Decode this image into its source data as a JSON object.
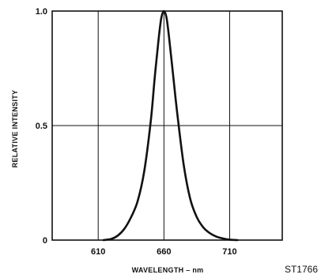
{
  "chart_data": {
    "type": "line",
    "title": "",
    "xlabel": "WAVELENGTH – nm",
    "ylabel": "RELATIVE INTENSITY",
    "xlim": [
      575,
      750
    ],
    "ylim": [
      0,
      1.0
    ],
    "x_ticks": [
      610,
      660,
      710
    ],
    "x_tick_labels": [
      "610",
      "660",
      "710"
    ],
    "y_ticks": [
      0,
      0.5,
      1.0
    ],
    "y_tick_labels": [
      "0",
      "0.5",
      "1.0"
    ],
    "grid": true,
    "legend": "none",
    "figure_id": "ST1766",
    "colors": {
      "line": "#111111",
      "grid": "#111111",
      "frame": "#111111"
    },
    "series": [
      {
        "x": [
          614,
          620,
          625,
          630,
          635,
          640,
          645,
          650,
          653,
          656,
          658,
          660,
          662,
          664,
          667,
          670,
          675,
          680,
          685,
          690,
          695,
          700,
          705,
          710,
          716
        ],
        "y": [
          0.0,
          0.005,
          0.02,
          0.05,
          0.1,
          0.17,
          0.3,
          0.52,
          0.71,
          0.88,
          0.97,
          1.0,
          0.97,
          0.88,
          0.72,
          0.56,
          0.33,
          0.18,
          0.1,
          0.055,
          0.03,
          0.015,
          0.007,
          0.002,
          0.0
        ]
      }
    ]
  }
}
